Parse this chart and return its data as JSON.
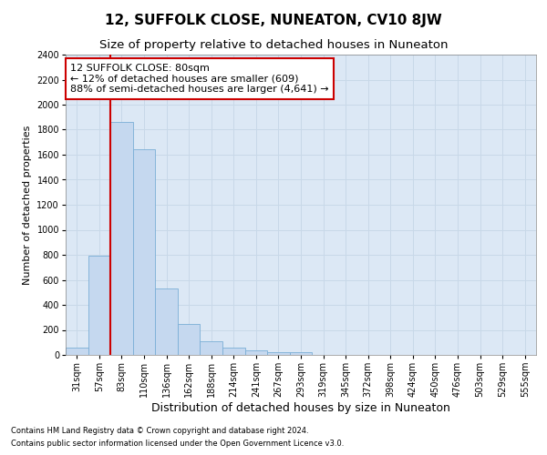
{
  "title": "12, SUFFOLK CLOSE, NUNEATON, CV10 8JW",
  "subtitle": "Size of property relative to detached houses in Nuneaton",
  "xlabel": "Distribution of detached houses by size in Nuneaton",
  "ylabel": "Number of detached properties",
  "categories": [
    "31sqm",
    "57sqm",
    "83sqm",
    "110sqm",
    "136sqm",
    "162sqm",
    "188sqm",
    "214sqm",
    "241sqm",
    "267sqm",
    "293sqm",
    "319sqm",
    "345sqm",
    "372sqm",
    "398sqm",
    "424sqm",
    "450sqm",
    "476sqm",
    "503sqm",
    "529sqm",
    "555sqm"
  ],
  "values": [
    55,
    790,
    1860,
    1640,
    530,
    245,
    110,
    55,
    35,
    20,
    20,
    0,
    0,
    0,
    0,
    0,
    0,
    0,
    0,
    0,
    0
  ],
  "bar_color": "#c5d8ef",
  "bar_edge_color": "#7aaed6",
  "marker_index": 2,
  "marker_color": "#cc0000",
  "ylim": [
    0,
    2400
  ],
  "yticks": [
    0,
    200,
    400,
    600,
    800,
    1000,
    1200,
    1400,
    1600,
    1800,
    2000,
    2200,
    2400
  ],
  "annotation_box_text": "12 SUFFOLK CLOSE: 80sqm\n← 12% of detached houses are smaller (609)\n88% of semi-detached houses are larger (4,641) →",
  "annotation_box_color": "#cc0000",
  "footer_line1": "Contains HM Land Registry data © Crown copyright and database right 2024.",
  "footer_line2": "Contains public sector information licensed under the Open Government Licence v3.0.",
  "grid_color": "#c8d8e8",
  "background_color": "#dce8f5",
  "title_fontsize": 11,
  "subtitle_fontsize": 9.5,
  "xlabel_fontsize": 9,
  "ylabel_fontsize": 8,
  "tick_fontsize": 7,
  "annotation_fontsize": 8,
  "footer_fontsize": 6
}
